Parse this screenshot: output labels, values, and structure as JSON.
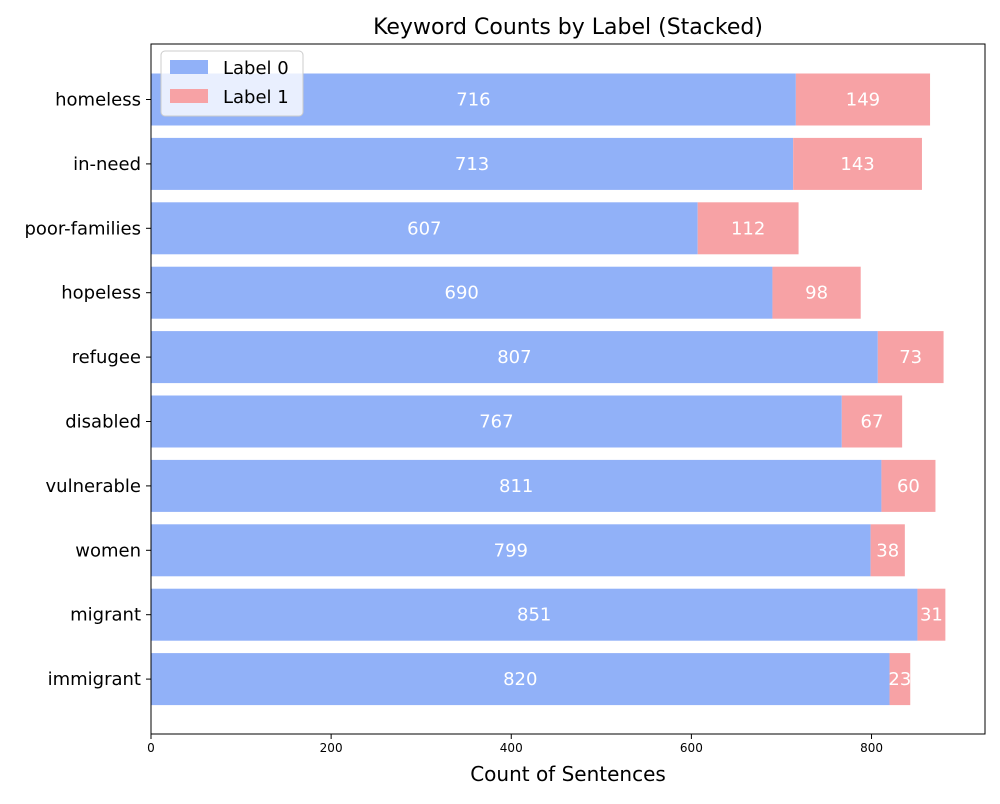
{
  "chart_data": {
    "type": "bar",
    "orientation": "horizontal",
    "stacked": true,
    "title": "Keyword Counts by Label (Stacked)",
    "xlabel": "Count of Sentences",
    "ylabel": "",
    "xlim": [
      0,
      926
    ],
    "x_ticks": [
      0,
      200,
      400,
      600,
      800
    ],
    "grid": false,
    "legend_position": "top-left",
    "categories": [
      "homeless",
      "in-need",
      "poor-families",
      "hopeless",
      "refugee",
      "disabled",
      "vulnerable",
      "women",
      "migrant",
      "immigrant"
    ],
    "series": [
      {
        "name": "Label 0",
        "color": "#91b1f8",
        "values": [
          716,
          713,
          607,
          690,
          807,
          767,
          811,
          799,
          851,
          820
        ]
      },
      {
        "name": "Label 1",
        "color": "#f7a2a5",
        "values": [
          149,
          143,
          112,
          98,
          73,
          67,
          60,
          38,
          31,
          23
        ]
      }
    ]
  }
}
